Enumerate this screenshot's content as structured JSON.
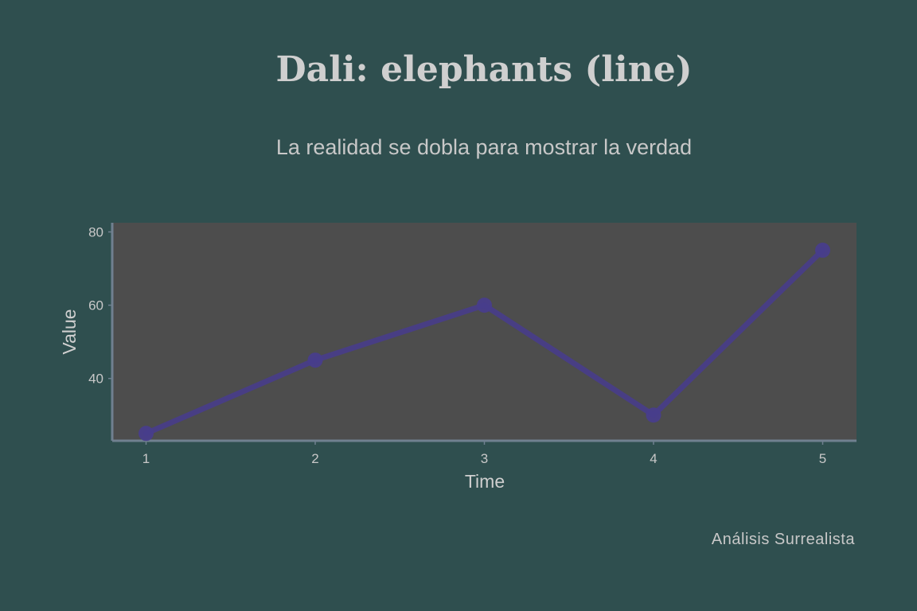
{
  "title": "Dali: elephants (line)",
  "subtitle": "La realidad se dobla para mostrar la verdad",
  "footer": "Análisis Surrealista",
  "colors": {
    "background": "#2f4f4f",
    "plot_background": "#4d4d4d",
    "axis": "#708090",
    "line": "#483d8b"
  },
  "chart_data": {
    "type": "line",
    "x": [
      1,
      2,
      3,
      4,
      5
    ],
    "series": [
      {
        "values": [
          25,
          45,
          60,
          30,
          75
        ]
      }
    ],
    "xlabel": "Time",
    "ylabel": "Value",
    "xlim": [
      0.8,
      5.2
    ],
    "ylim": [
      23,
      82.5
    ],
    "xticks": [
      1,
      2,
      3,
      4,
      5
    ],
    "yticks": [
      40,
      60,
      80
    ],
    "grid": false,
    "legend": "none"
  }
}
